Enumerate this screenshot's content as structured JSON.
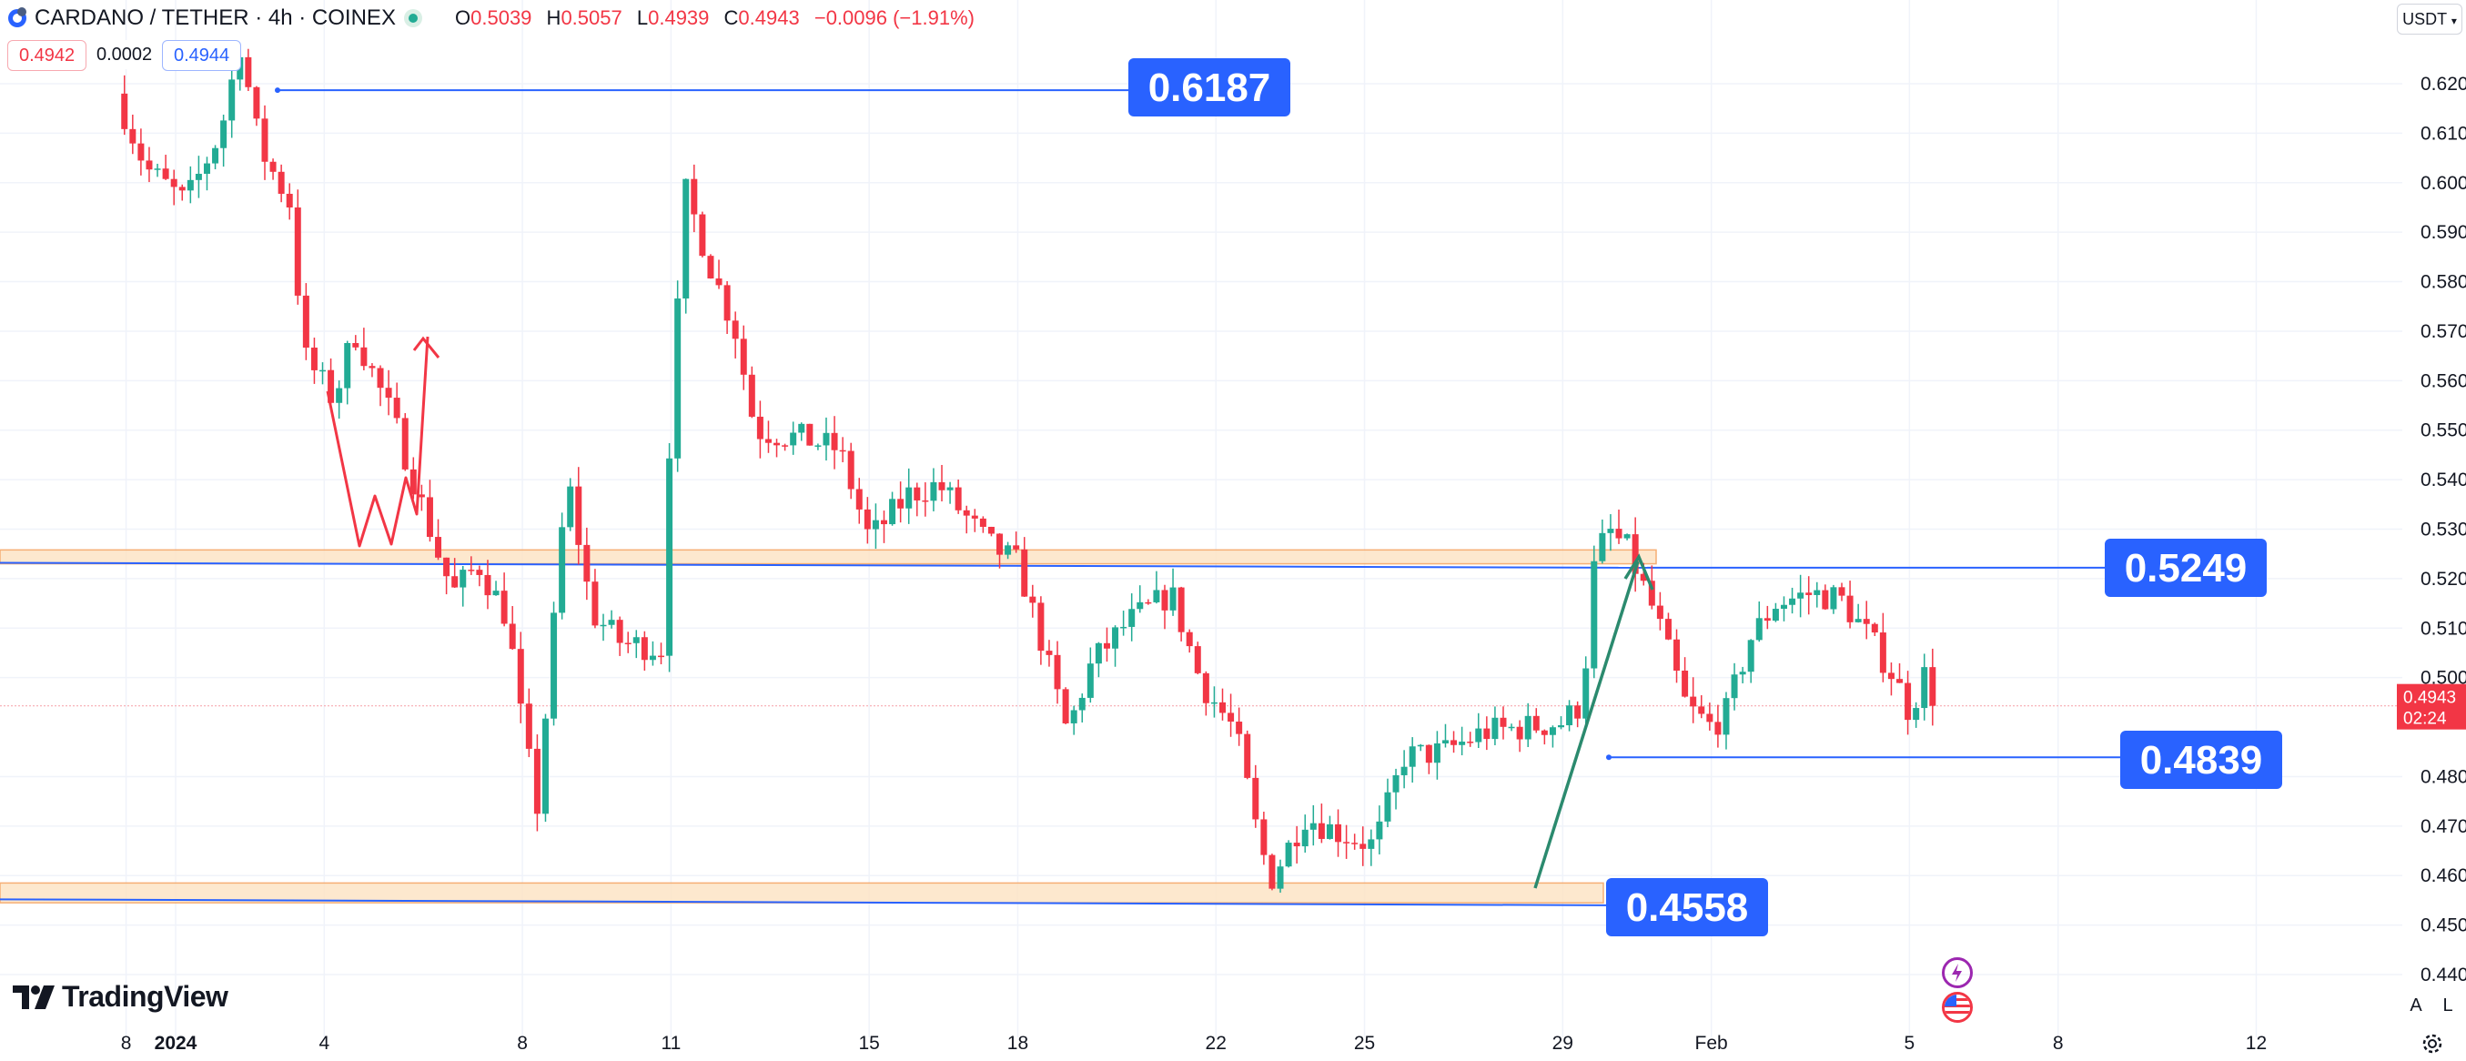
{
  "header": {
    "title": "CARDANO / TETHER · 4h · COINEX",
    "open_label": "O",
    "open": "0.5039",
    "high_label": "H",
    "high": "0.5057",
    "low_label": "L",
    "low": "0.4939",
    "close_label": "C",
    "close": "0.4943",
    "change": "−0.0096 (−1.91%)"
  },
  "quote": {
    "bid": "0.4942",
    "spread": "0.0002",
    "ask": "0.4944"
  },
  "currency_selector": "USDT",
  "branding": {
    "logo_text": "TradingView"
  },
  "scale_controls": {
    "auto": "A",
    "log": "L"
  },
  "colors": {
    "up": "#22ab94",
    "down": "#f23645",
    "level": "#2962ff",
    "zone_fill": "#fde4c6",
    "zone_border": "#f5a25d",
    "annotation_green": "#2b8a6e",
    "annotation_red": "#f23645"
  },
  "chart_data": {
    "type": "candlestick",
    "symbol": "CARDANO / TETHER",
    "interval": "4h",
    "exchange": "COINEX",
    "ylim": [
      0.437,
      0.628
    ],
    "y_ticks": [
      "0.6200",
      "0.6100",
      "0.6000",
      "0.5900",
      "0.5800",
      "0.5700",
      "0.5600",
      "0.5500",
      "0.5400",
      "0.5300",
      "0.5200",
      "0.5100",
      "0.5000",
      "0.4800",
      "0.4700",
      "0.4600",
      "0.4500",
      "0.4400"
    ],
    "x_ticks": [
      {
        "label": "8",
        "t": -1.0
      },
      {
        "label": "2024",
        "t": 0.0
      },
      {
        "label": "4",
        "t": 3.0
      },
      {
        "label": "8",
        "t": 7.0
      },
      {
        "label": "11",
        "t": 10.0
      },
      {
        "label": "15",
        "t": 14.0
      },
      {
        "label": "18",
        "t": 17.0
      },
      {
        "label": "22",
        "t": 21.0
      },
      {
        "label": "25",
        "t": 24.0
      },
      {
        "label": "29",
        "t": 28.0
      },
      {
        "label": "Feb",
        "t": 31.0
      },
      {
        "label": "5",
        "t": 35.0
      },
      {
        "label": "8",
        "t": 38.0
      },
      {
        "label": "12",
        "t": 42.0
      }
    ],
    "current_price": {
      "value": "0.4943",
      "countdown": "02:24",
      "price": 0.4943
    },
    "levels": [
      {
        "label": "0.6187",
        "price": 0.6187
      },
      {
        "label": "0.5249",
        "price": 0.5249
      },
      {
        "label": "0.4839",
        "price": 0.4839
      },
      {
        "label": "0.4558",
        "price": 0.4558
      }
    ],
    "zones": [
      {
        "from": 0.523,
        "to": 0.5258
      },
      {
        "from": 0.4545,
        "to": 0.4585
      }
    ],
    "waypoints": [
      {
        "t": -1.2,
        "p": 0.618
      },
      {
        "t": -0.6,
        "p": 0.603
      },
      {
        "t": 0.2,
        "p": 0.596
      },
      {
        "t": 0.9,
        "p": 0.61
      },
      {
        "t": 1.3,
        "p": 0.628
      },
      {
        "t": 1.7,
        "p": 0.607
      },
      {
        "t": 2.3,
        "p": 0.596
      },
      {
        "t": 2.6,
        "p": 0.565
      },
      {
        "t": 3.2,
        "p": 0.556
      },
      {
        "t": 3.6,
        "p": 0.57
      },
      {
        "t": 4.4,
        "p": 0.552
      },
      {
        "t": 5.3,
        "p": 0.525
      },
      {
        "t": 5.6,
        "p": 0.517
      },
      {
        "t": 6.1,
        "p": 0.523
      },
      {
        "t": 6.7,
        "p": 0.512
      },
      {
        "t": 7.0,
        "p": 0.49
      },
      {
        "t": 7.3,
        "p": 0.474
      },
      {
        "t": 7.6,
        "p": 0.507
      },
      {
        "t": 7.9,
        "p": 0.541
      },
      {
        "t": 8.4,
        "p": 0.513
      },
      {
        "t": 9.0,
        "p": 0.507
      },
      {
        "t": 9.8,
        "p": 0.506
      },
      {
        "t": 10.0,
        "p": 0.555
      },
      {
        "t": 10.3,
        "p": 0.598
      },
      {
        "t": 10.8,
        "p": 0.583
      },
      {
        "t": 11.3,
        "p": 0.57
      },
      {
        "t": 11.7,
        "p": 0.55
      },
      {
        "t": 12.8,
        "p": 0.548
      },
      {
        "t": 13.4,
        "p": 0.546
      },
      {
        "t": 14.0,
        "p": 0.528
      },
      {
        "t": 14.8,
        "p": 0.537
      },
      {
        "t": 15.4,
        "p": 0.539
      },
      {
        "t": 16.4,
        "p": 0.527
      },
      {
        "t": 17.0,
        "p": 0.523
      },
      {
        "t": 17.4,
        "p": 0.51
      },
      {
        "t": 18.0,
        "p": 0.489
      },
      {
        "t": 18.5,
        "p": 0.503
      },
      {
        "t": 19.2,
        "p": 0.511
      },
      {
        "t": 20.1,
        "p": 0.517
      },
      {
        "t": 20.7,
        "p": 0.499
      },
      {
        "t": 21.4,
        "p": 0.489
      },
      {
        "t": 21.8,
        "p": 0.47
      },
      {
        "t": 22.1,
        "p": 0.459
      },
      {
        "t": 22.8,
        "p": 0.472
      },
      {
        "t": 23.4,
        "p": 0.469
      },
      {
        "t": 24.2,
        "p": 0.466
      },
      {
        "t": 24.8,
        "p": 0.484
      },
      {
        "t": 25.6,
        "p": 0.485
      },
      {
        "t": 26.4,
        "p": 0.489
      },
      {
        "t": 27.3,
        "p": 0.49
      },
      {
        "t": 28.0,
        "p": 0.491
      },
      {
        "t": 28.4,
        "p": 0.495
      },
      {
        "t": 28.6,
        "p": 0.521
      },
      {
        "t": 28.9,
        "p": 0.53
      },
      {
        "t": 29.3,
        "p": 0.526
      },
      {
        "t": 29.9,
        "p": 0.512
      },
      {
        "t": 30.5,
        "p": 0.494
      },
      {
        "t": 31.0,
        "p": 0.49
      },
      {
        "t": 31.3,
        "p": 0.493
      },
      {
        "t": 31.8,
        "p": 0.508
      },
      {
        "t": 32.3,
        "p": 0.515
      },
      {
        "t": 33.0,
        "p": 0.517
      },
      {
        "t": 33.6,
        "p": 0.516
      },
      {
        "t": 34.2,
        "p": 0.508
      },
      {
        "t": 34.7,
        "p": 0.5
      },
      {
        "t": 35.0,
        "p": 0.493
      },
      {
        "t": 35.4,
        "p": 0.503
      },
      {
        "t": 35.6,
        "p": 0.4943
      }
    ]
  }
}
